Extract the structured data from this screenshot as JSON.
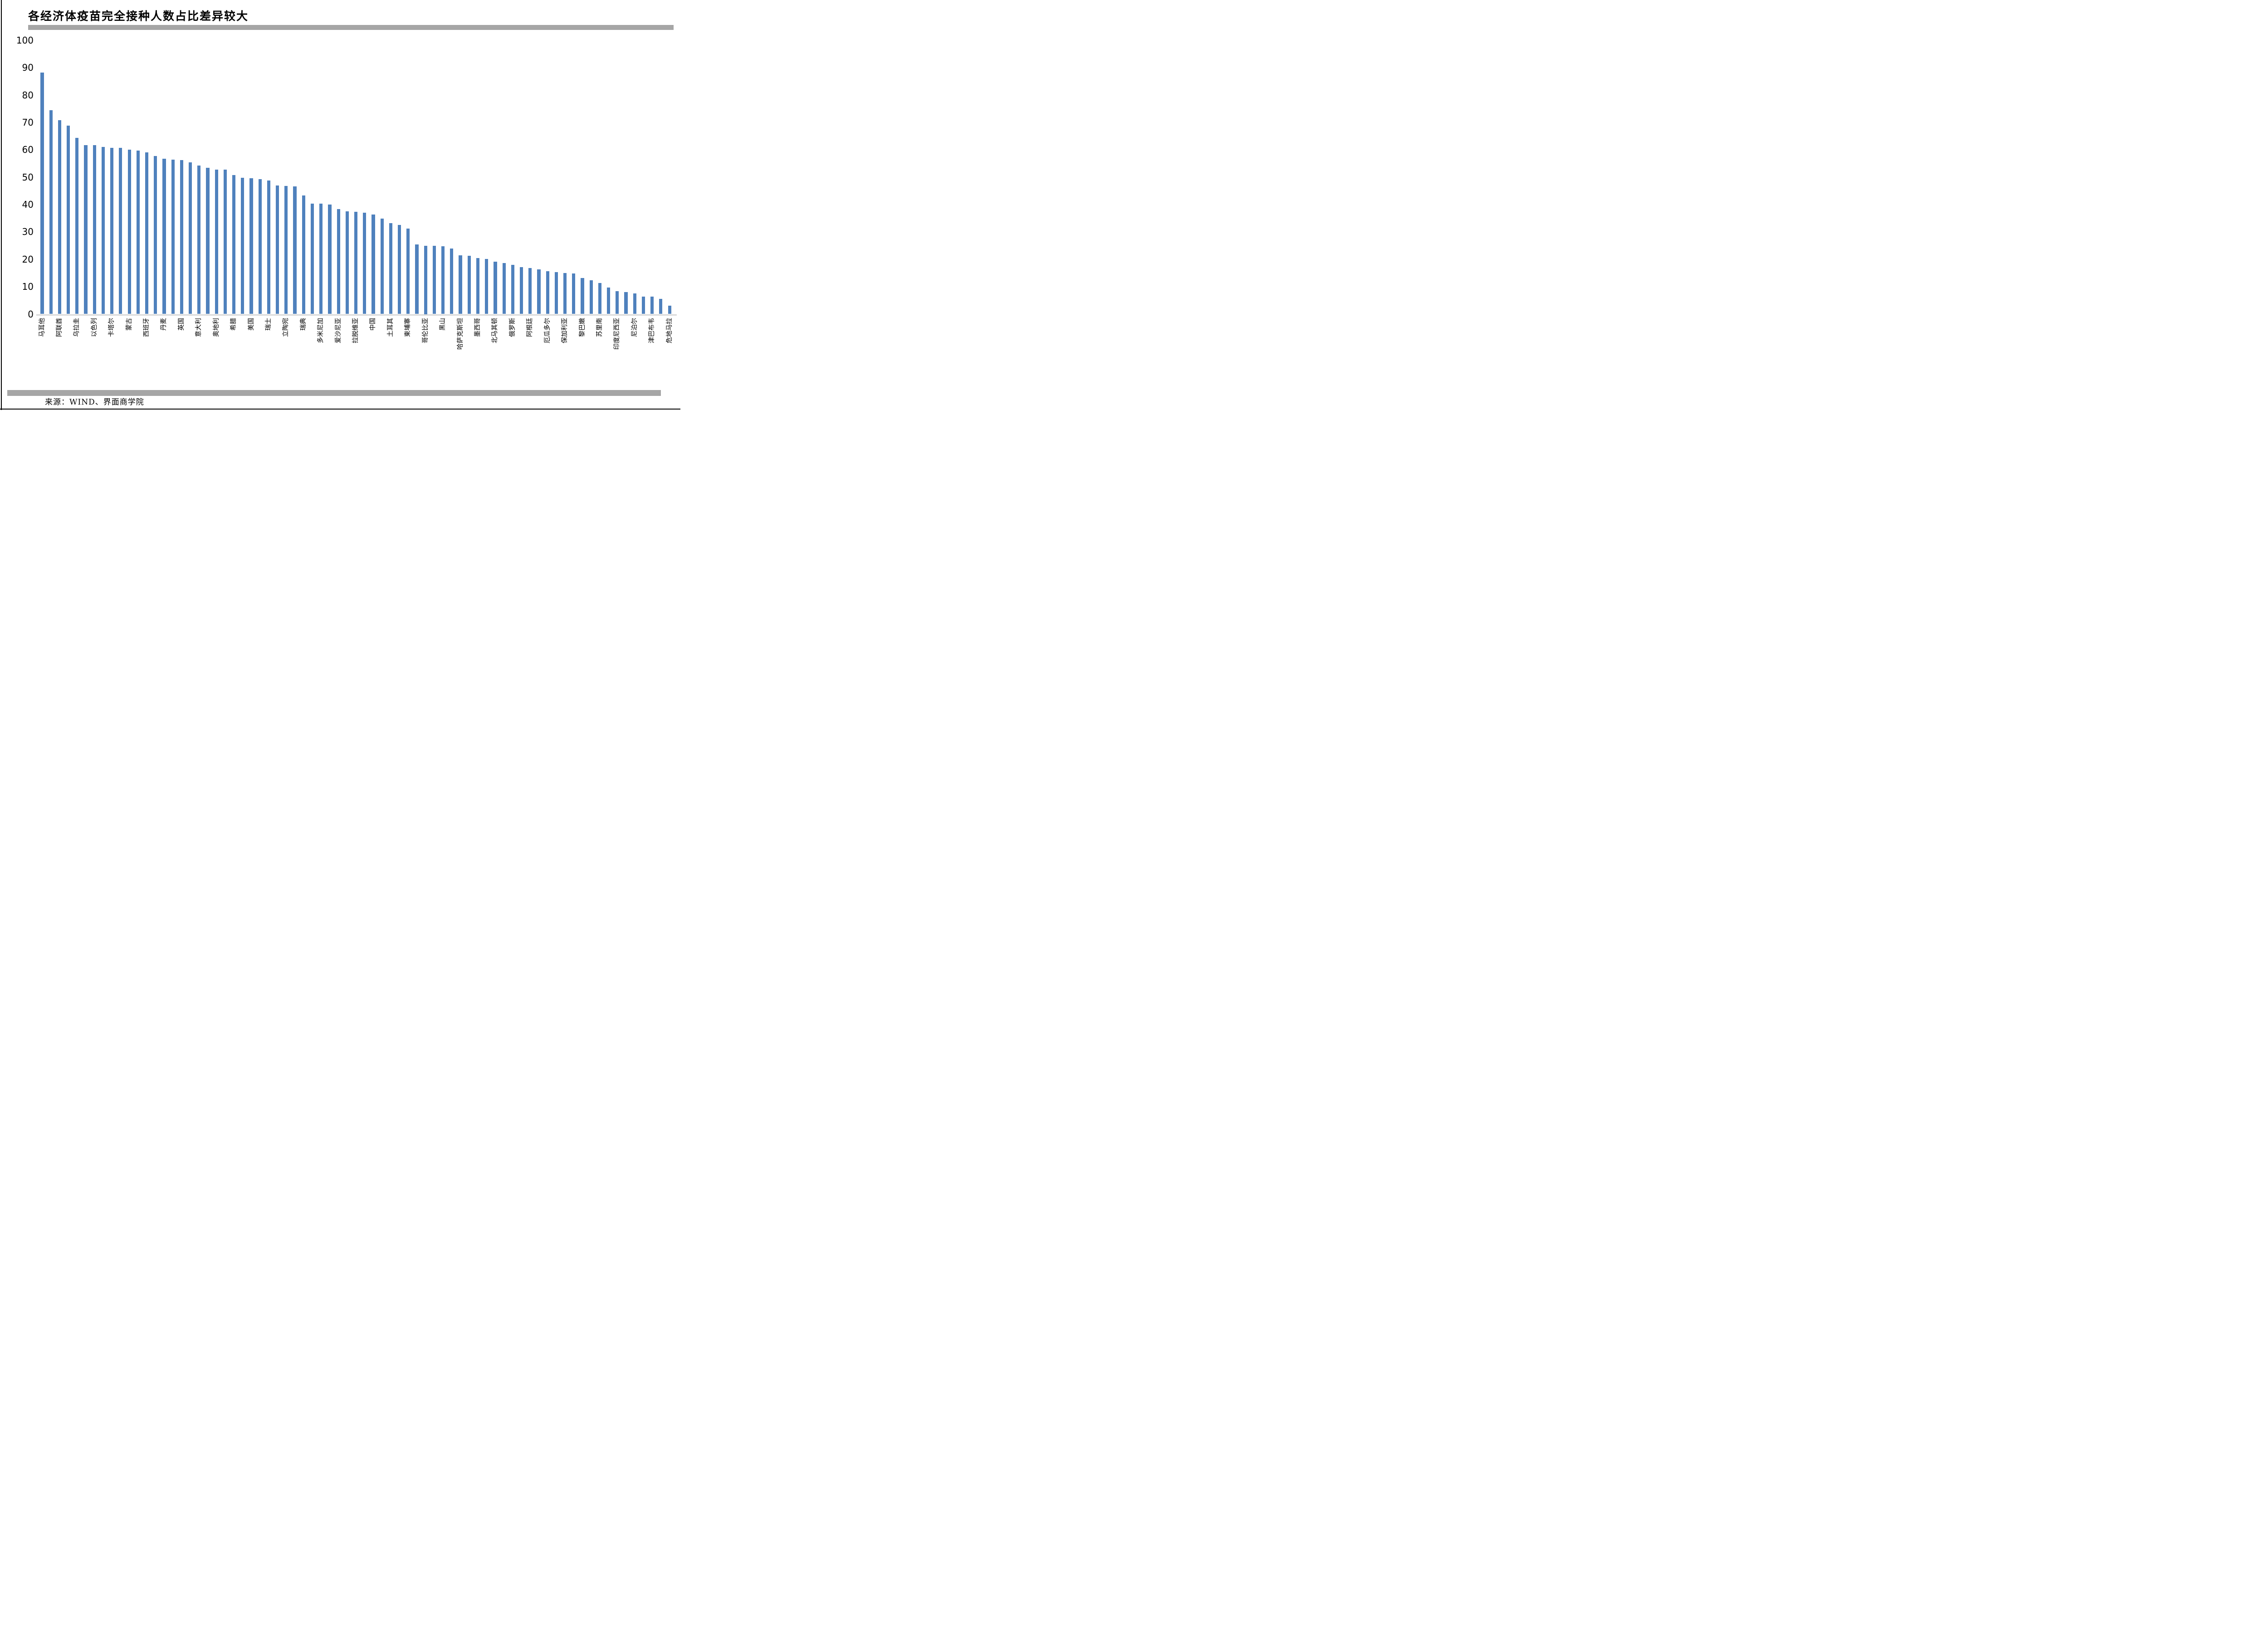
{
  "title": "各经济体疫苗完全接种人数占比差异较大",
  "source_note": "来源：WIND、界面商学院",
  "colors": {
    "bar": "#4f81bd",
    "divider": "#a6a6a6",
    "axis_line": "#d9d9d9",
    "text": "#000000",
    "background": "#ffffff"
  },
  "chart_data": {
    "type": "bar",
    "title": "各经济体疫苗完全接种人数占比差异较大",
    "xlabel": "",
    "ylabel": "",
    "ylim": [
      0,
      100
    ],
    "yticks": [
      0,
      10,
      20,
      30,
      40,
      50,
      60,
      70,
      80,
      90,
      100
    ],
    "grid": false,
    "legend_position": "none",
    "note": "每隔一根柱子显示一个经济体标签（label为空表示该柱无标签）",
    "bars": [
      {
        "label": "马耳他",
        "value": 88.3
      },
      {
        "label": "",
        "value": 74.4
      },
      {
        "label": "阿联酋",
        "value": 70.9
      },
      {
        "label": "",
        "value": 68.8
      },
      {
        "label": "乌拉圭",
        "value": 64.4
      },
      {
        "label": "",
        "value": 61.7
      },
      {
        "label": "以色列",
        "value": 61.7
      },
      {
        "label": "",
        "value": 61.1
      },
      {
        "label": "卡塔尔",
        "value": 60.8
      },
      {
        "label": "",
        "value": 60.8
      },
      {
        "label": "蒙古",
        "value": 60.1
      },
      {
        "label": "",
        "value": 59.7
      },
      {
        "label": "西班牙",
        "value": 59.0
      },
      {
        "label": "",
        "value": 57.8
      },
      {
        "label": "丹麦",
        "value": 56.8
      },
      {
        "label": "",
        "value": 56.4
      },
      {
        "label": "英国",
        "value": 56.2
      },
      {
        "label": "",
        "value": 55.5
      },
      {
        "label": "意大利",
        "value": 54.2
      },
      {
        "label": "",
        "value": 53.5
      },
      {
        "label": "奥地利",
        "value": 52.8
      },
      {
        "label": "",
        "value": 52.7
      },
      {
        "label": "希腊",
        "value": 50.8
      },
      {
        "label": "",
        "value": 49.8
      },
      {
        "label": "美国",
        "value": 49.7
      },
      {
        "label": "",
        "value": 49.3
      },
      {
        "label": "瑞士",
        "value": 48.8
      },
      {
        "label": "",
        "value": 47.0
      },
      {
        "label": "立陶宛",
        "value": 46.8
      },
      {
        "label": "",
        "value": 46.6
      },
      {
        "label": "瑞典",
        "value": 43.3
      },
      {
        "label": "",
        "value": 40.4
      },
      {
        "label": "多米尼加",
        "value": 40.3
      },
      {
        "label": "",
        "value": 40.0
      },
      {
        "label": "爱沙尼亚",
        "value": 38.3
      },
      {
        "label": "",
        "value": 37.6
      },
      {
        "label": "拉脱维亚",
        "value": 37.3
      },
      {
        "label": "",
        "value": 37.1
      },
      {
        "label": "中国",
        "value": 36.4
      },
      {
        "label": "",
        "value": 34.9
      },
      {
        "label": "土耳其",
        "value": 33.2
      },
      {
        "label": "",
        "value": 32.5
      },
      {
        "label": "柬埔寨",
        "value": 31.2
      },
      {
        "label": "",
        "value": 25.5
      },
      {
        "label": "哥伦比亚",
        "value": 25.0
      },
      {
        "label": "",
        "value": 24.9
      },
      {
        "label": "黑山",
        "value": 24.8
      },
      {
        "label": "",
        "value": 23.9
      },
      {
        "label": "哈萨克斯坦",
        "value": 21.4
      },
      {
        "label": "",
        "value": 21.3
      },
      {
        "label": "墨西哥",
        "value": 20.4
      },
      {
        "label": "",
        "value": 20.2
      },
      {
        "label": "北马其顿",
        "value": 19.1
      },
      {
        "label": "",
        "value": 18.6
      },
      {
        "label": "俄罗斯",
        "value": 17.9
      },
      {
        "label": "",
        "value": 17.2
      },
      {
        "label": "阿根廷",
        "value": 16.9
      },
      {
        "label": "",
        "value": 16.4
      },
      {
        "label": "厄瓜多尔",
        "value": 15.7
      },
      {
        "label": "",
        "value": 15.4
      },
      {
        "label": "保加利亚",
        "value": 15.0
      },
      {
        "label": "",
        "value": 14.8
      },
      {
        "label": "黎巴嫩",
        "value": 13.2
      },
      {
        "label": "",
        "value": 12.3
      },
      {
        "label": "苏里南",
        "value": 11.4
      },
      {
        "label": "",
        "value": 9.7
      },
      {
        "label": "印度尼西亚",
        "value": 8.3
      },
      {
        "label": "",
        "value": 8.1
      },
      {
        "label": "尼泊尔",
        "value": 7.5
      },
      {
        "label": "",
        "value": 6.4
      },
      {
        "label": "津巴布韦",
        "value": 6.3
      },
      {
        "label": "",
        "value": 5.5
      },
      {
        "label": "危地马拉",
        "value": 3.0
      }
    ]
  }
}
